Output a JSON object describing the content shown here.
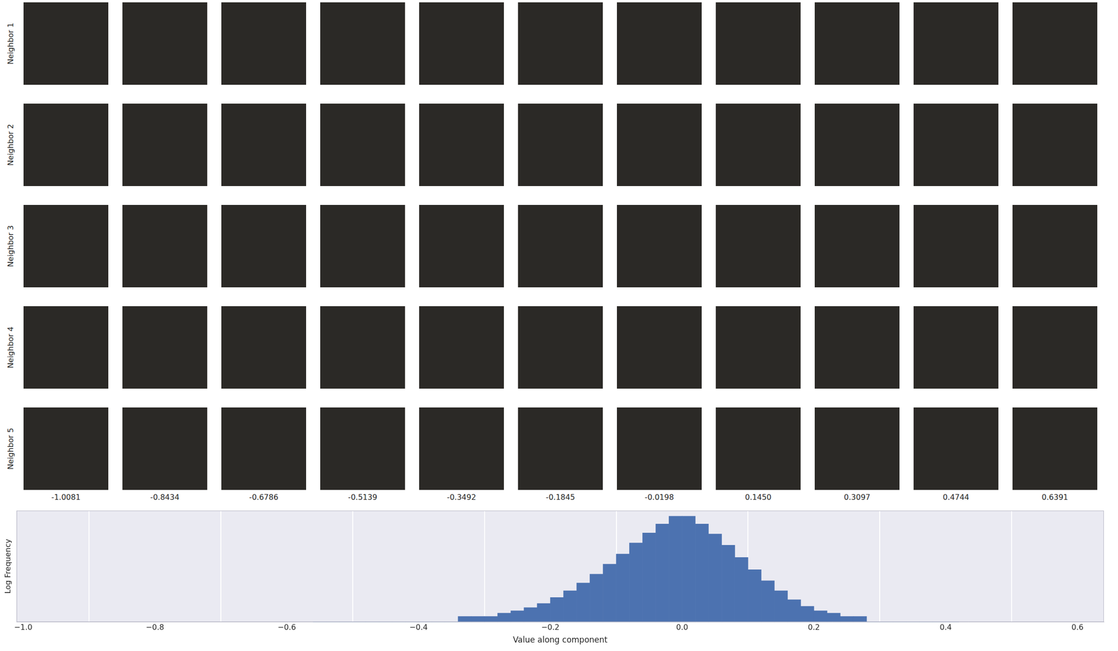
{
  "image_grid": {
    "row_labels": [
      "Neighbor 1",
      "Neighbor 2",
      "Neighbor 3",
      "Neighbor 4",
      "Neighbor 5"
    ],
    "column_labels": [
      "-1.0081",
      "-0.8434",
      "-0.6786",
      "-0.5139",
      "-0.3492",
      "-0.1845",
      "-0.0198",
      "0.1450",
      "0.3097",
      "0.4744",
      "0.6391"
    ]
  },
  "chart_data": {
    "type": "histogram",
    "xlabel": "Value along component",
    "ylabel": "Log Frequency",
    "bins": [
      -0.56,
      -0.54,
      -0.52,
      -0.5,
      -0.48,
      -0.46,
      -0.44,
      -0.42,
      -0.4,
      -0.38,
      -0.36,
      -0.34,
      -0.32,
      -0.3,
      -0.28,
      -0.26,
      -0.24,
      -0.22,
      -0.2,
      -0.18,
      -0.16,
      -0.14,
      -0.12,
      -0.1,
      -0.08,
      -0.06,
      -0.04,
      -0.02,
      0.0,
      0.02,
      0.04,
      0.06,
      0.08,
      0.1,
      0.12,
      0.14,
      0.16,
      0.18,
      0.2,
      0.22,
      0.24,
      0.26,
      0.28,
      0.3,
      0.32,
      0.34,
      0.36,
      0.38,
      0.4,
      0.42
    ],
    "counts": [
      1,
      1,
      1,
      1,
      1,
      1,
      1,
      1,
      1,
      1,
      1,
      2,
      2,
      2,
      3,
      4,
      6,
      10,
      21,
      48,
      126,
      380,
      1318,
      4571,
      18197,
      63096,
      190546,
      501187,
      501187,
      190546,
      54954,
      13804,
      3020,
      661,
      166,
      48,
      16,
      7,
      4,
      3,
      2,
      2,
      1,
      1,
      1,
      1,
      1,
      1,
      1
    ],
    "color": "#4c72b0",
    "xlim": [
      -1.01,
      0.64
    ],
    "xticks": [
      {
        "value": -1.0,
        "label": "−1.0"
      },
      {
        "value": -0.8,
        "label": "−0.8"
      },
      {
        "value": -0.6,
        "label": "−0.6"
      },
      {
        "value": -0.4,
        "label": "−0.4"
      },
      {
        "value": -0.2,
        "label": "−0.2"
      },
      {
        "value": 0.0,
        "label": "0.0"
      },
      {
        "value": 0.2,
        "label": "0.2"
      },
      {
        "value": 0.4,
        "label": "0.4"
      },
      {
        "value": 0.6,
        "label": "0.6"
      }
    ],
    "ylim": [
      1,
      1000000
    ],
    "log": "y",
    "grid": true,
    "tick_labels": "x"
  }
}
